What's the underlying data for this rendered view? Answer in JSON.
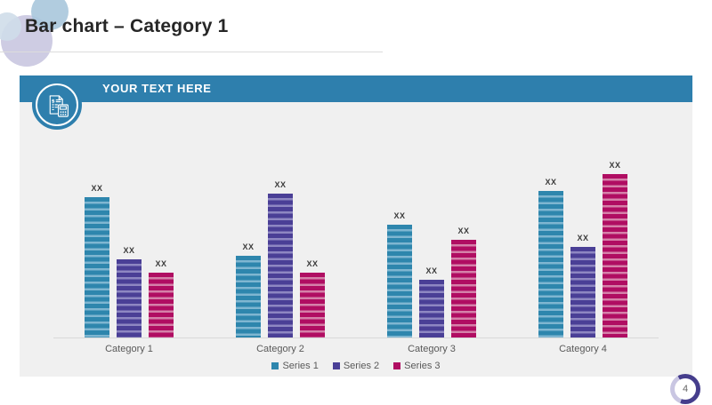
{
  "slide": {
    "title": "Bar chart – Category 1",
    "page_number": "4"
  },
  "card": {
    "header": {
      "label": "YOUR TEXT HERE",
      "icon": "invoice-calculator-icon",
      "bg_color": "#2e7fad"
    }
  },
  "chart_data": {
    "type": "bar",
    "title": "",
    "xlabel": "",
    "ylabel": "",
    "categories": [
      "Category 1",
      "Category 2",
      "Category 3",
      "Category 4"
    ],
    "series": [
      {
        "name": "Series 1",
        "color": "#2e86ad",
        "stripe_color": "#7fb6d1",
        "values": [
          79,
          46,
          63.5,
          82.5
        ]
      },
      {
        "name": "Series 2",
        "color": "#4a3f96",
        "stripe_color": "#8e87c2",
        "values": [
          44,
          81,
          32.5,
          51
        ]
      },
      {
        "name": "Series 3",
        "color": "#b00d62",
        "stripe_color": "#d581a9",
        "values": [
          36.5,
          36.5,
          55,
          92
        ]
      }
    ],
    "data_label": "XX",
    "ylim": [
      0,
      100
    ],
    "grid": false,
    "legend_position": "bottom"
  },
  "colors": {
    "header_blue": "#2e7fad",
    "card_bg": "#f0f0f0",
    "axis_line": "#d9d9d9",
    "category_label": "#595959",
    "title_text": "#262626",
    "badge_dark": "#453d8c",
    "badge_light": "#c9c6e2"
  }
}
